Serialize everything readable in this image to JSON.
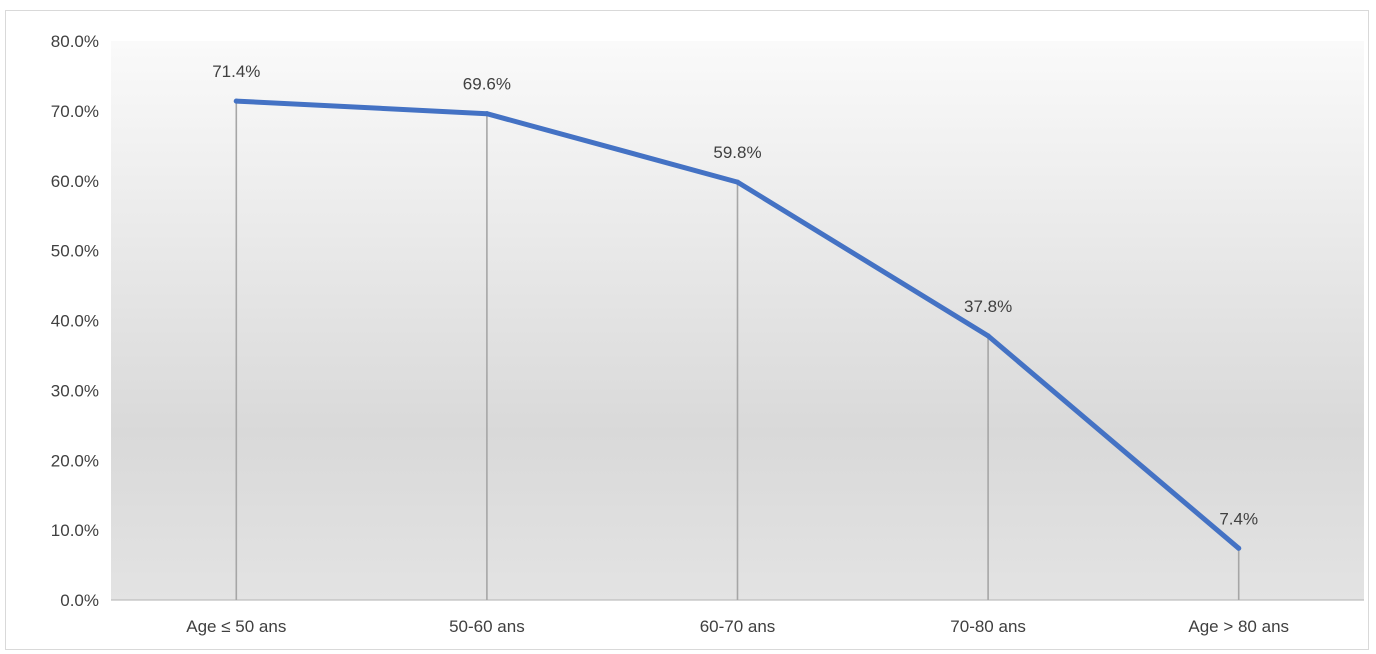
{
  "chart_data": {
    "type": "line",
    "categories": [
      "Age ≤ 50 ans",
      "50-60 ans",
      "60-70 ans",
      "70-80 ans",
      "Age > 80 ans"
    ],
    "values": [
      71.4,
      69.6,
      59.8,
      37.8,
      7.4
    ],
    "data_labels": [
      "71.4%",
      "69.6%",
      "59.8%",
      "37.8%",
      "7.4%"
    ],
    "y_ticks": [
      "0.0%",
      "10.0%",
      "20.0%",
      "30.0%",
      "40.0%",
      "50.0%",
      "60.0%",
      "70.0%",
      "80.0%"
    ],
    "ylim": [
      0,
      80
    ],
    "drop_lines": true,
    "grid": false,
    "legend": "none",
    "title": "",
    "xlabel": "",
    "ylabel": "",
    "colors": {
      "line": "#4472C4",
      "drop_line": "#a6a6a6",
      "axis": "#bfbfbf",
      "plot_bg_top": "#fafafa",
      "plot_bg_bottom": "#d9d9d9"
    }
  }
}
